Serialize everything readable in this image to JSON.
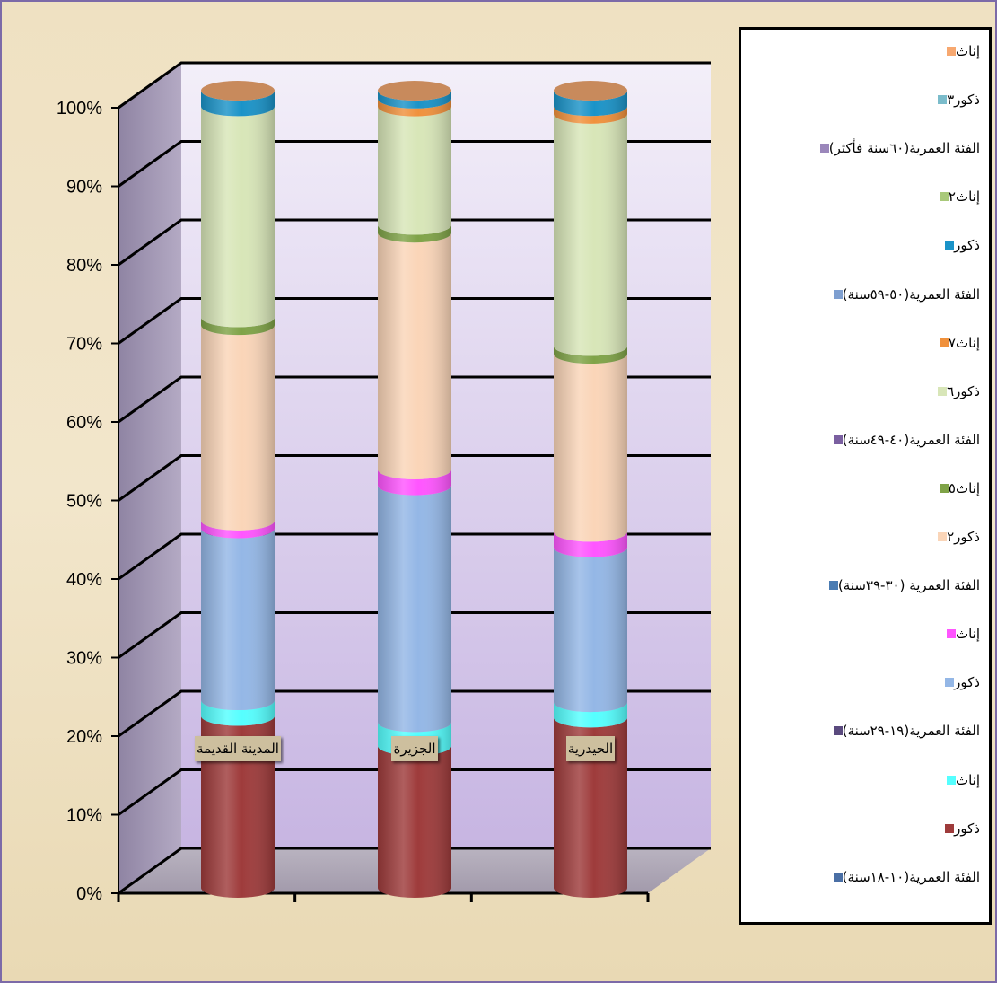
{
  "chart_data": {
    "type": "bar",
    "stacked": true,
    "percent_stacked": true,
    "grid": true,
    "legend_position": "right",
    "categories": [
      "المدينة القديمة",
      "الجزيرة",
      "الحيدرية"
    ],
    "y_ticks": [
      "0%",
      "10%",
      "20%",
      "30%",
      "40%",
      "50%",
      "60%",
      "70%",
      "80%",
      "90%",
      "100%"
    ],
    "ylim": [
      0,
      100
    ],
    "series": [
      {
        "name": "الفئة العمرية(١٠-١٨سنة)",
        "color": "#4a6fa5",
        "values": [
          0,
          0,
          0
        ]
      },
      {
        "name": "ذكور",
        "color": "#9e3b3b",
        "values": [
          22,
          18,
          22
        ]
      },
      {
        "name": "إناث",
        "color": "#55ffff",
        "values": [
          2,
          3,
          2
        ]
      },
      {
        "name": "الفئة العمرية(١٩-٢٩سنة)",
        "color": "#5a4a7e",
        "values": [
          0,
          0,
          0
        ]
      },
      {
        "name": "ذكور",
        "color": "#94b7e6",
        "values": [
          22,
          30,
          20
        ]
      },
      {
        "name": "إناث",
        "color": "#ff55ff",
        "values": [
          1,
          2,
          2
        ]
      },
      {
        "name": "الفئة العمرية (٣٠-٣٩سنة)",
        "color": "#4a7cb3",
        "values": [
          0,
          0,
          0
        ]
      },
      {
        "name": "ذكور٢",
        "color": "#fad5b8",
        "values": [
          25,
          30,
          23
        ]
      },
      {
        "name": "إناث٥",
        "color": "#7fa347",
        "values": [
          1,
          1,
          1
        ]
      },
      {
        "name": "الفئة العمرية(٤٠-٤٩سنة)",
        "color": "#7a5fa0",
        "values": [
          0,
          0,
          0
        ]
      },
      {
        "name": "ذكور٦",
        "color": "#d8e6b8",
        "values": [
          27,
          15,
          30
        ]
      },
      {
        "name": "إناث٧",
        "color": "#f0913c",
        "values": [
          0,
          1,
          1
        ]
      },
      {
        "name": "الفئة العمرية(٥٠-٥٩سنة)",
        "color": "#7e9fd0",
        "values": [
          0,
          0,
          0
        ]
      },
      {
        "name": "ذكور",
        "color": "#1a93c8",
        "values": [
          2,
          1,
          2
        ]
      },
      {
        "name": "إناث٢",
        "color": "#a9c97a",
        "values": [
          0,
          0,
          0
        ]
      },
      {
        "name": "الفئة العمرية(٦٠سنة فأكثر)",
        "color": "#9b87bb",
        "values": [
          0,
          0,
          0
        ]
      },
      {
        "name": "ذكور٣",
        "color": "#7bbccb",
        "values": [
          0,
          0,
          0
        ]
      },
      {
        "name": "إناث",
        "color": "#f7a870",
        "values": [
          0,
          0,
          0
        ]
      }
    ]
  }
}
